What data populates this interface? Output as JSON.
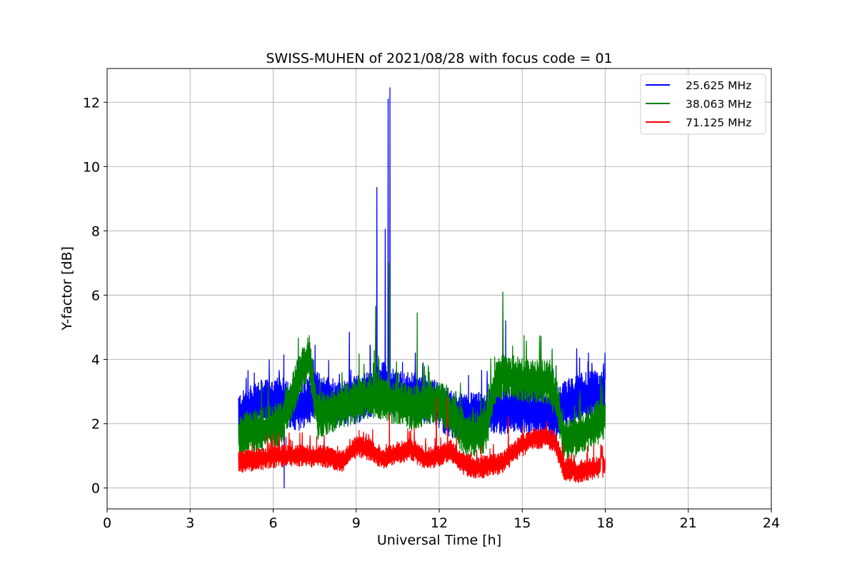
{
  "chart_data": {
    "type": "line",
    "title": "SWISS-MUHEN of 2021/08/28 with focus code = 01",
    "xlabel": "Universal Time [h]",
    "ylabel": "Y-factor [dB]",
    "xlim": [
      0,
      24
    ],
    "ylim": [
      -0.65,
      13.05
    ],
    "xticks": [
      0,
      3,
      6,
      9,
      12,
      15,
      18,
      21,
      24
    ],
    "yticks": [
      0,
      2,
      4,
      6,
      8,
      10,
      12
    ],
    "grid": true,
    "legend_position": "top-right",
    "series": [
      {
        "name": "25.625 MHz",
        "color": "#0000ff",
        "x": [
          4.75,
          5.5,
          6.3,
          6.95,
          7.5,
          8.5,
          9.2,
          9.7,
          10.0,
          10.2,
          10.6,
          11.2,
          11.8,
          12.4,
          13.0,
          13.7,
          14.2,
          14.7,
          15.2,
          15.7,
          16.1,
          16.5,
          17.0,
          17.5,
          18.0
        ],
        "values": [
          2.2,
          2.6,
          2.7,
          2.5,
          2.9,
          2.6,
          2.8,
          3.0,
          3.2,
          3.0,
          2.9,
          2.8,
          2.7,
          2.3,
          2.2,
          2.3,
          2.4,
          2.5,
          2.4,
          2.3,
          2.2,
          2.6,
          2.8,
          2.9,
          2.9
        ],
        "spikes": [
          [
            9.75,
            9.35
          ],
          [
            10.05,
            8.05
          ],
          [
            10.15,
            12.1
          ],
          [
            10.22,
            12.45
          ],
          [
            8.75,
            4.85
          ],
          [
            14.4,
            5.2
          ],
          [
            6.4,
            0.0
          ]
        ]
      },
      {
        "name": "38.063 MHz",
        "color": "#008000",
        "x": [
          4.75,
          5.5,
          6.3,
          6.95,
          7.3,
          7.6,
          8.3,
          9.0,
          9.7,
          10.3,
          11.0,
          11.8,
          12.3,
          13.0,
          13.7,
          14.0,
          14.3,
          14.8,
          15.5,
          16.0,
          16.3,
          16.5,
          17.0,
          17.5,
          18.0
        ],
        "values": [
          1.6,
          1.8,
          2.0,
          3.5,
          4.1,
          2.2,
          2.5,
          2.7,
          2.9,
          2.7,
          2.5,
          2.7,
          2.5,
          1.6,
          1.8,
          3.2,
          3.5,
          3.4,
          3.3,
          3.3,
          2.5,
          1.5,
          1.6,
          1.9,
          2.2
        ],
        "spikes": [
          [
            9.7,
            5.65
          ],
          [
            10.2,
            7.0
          ],
          [
            11.2,
            5.45
          ],
          [
            14.3,
            6.1
          ]
        ]
      },
      {
        "name": "71.125 MHz",
        "color": "#ff0000",
        "x": [
          4.75,
          5.5,
          6.3,
          7.0,
          7.8,
          8.5,
          9.0,
          9.5,
          10.0,
          10.5,
          11.0,
          11.5,
          12.0,
          12.4,
          12.8,
          13.3,
          13.8,
          14.3,
          14.8,
          15.3,
          15.8,
          16.2,
          16.5,
          17.0,
          17.5,
          18.0
        ],
        "values": [
          0.8,
          0.9,
          1.0,
          1.0,
          1.0,
          0.8,
          1.3,
          1.2,
          0.9,
          1.1,
          1.2,
          0.9,
          1.0,
          1.2,
          0.8,
          0.6,
          0.7,
          0.8,
          1.2,
          1.5,
          1.6,
          1.4,
          0.6,
          0.5,
          0.6,
          0.7
        ],
        "spikes": [
          [
            11.9,
            2.8
          ],
          [
            12.3,
            2.8
          ],
          [
            10.2,
            2.3
          ],
          [
            14.5,
            2.2
          ]
        ]
      }
    ]
  }
}
